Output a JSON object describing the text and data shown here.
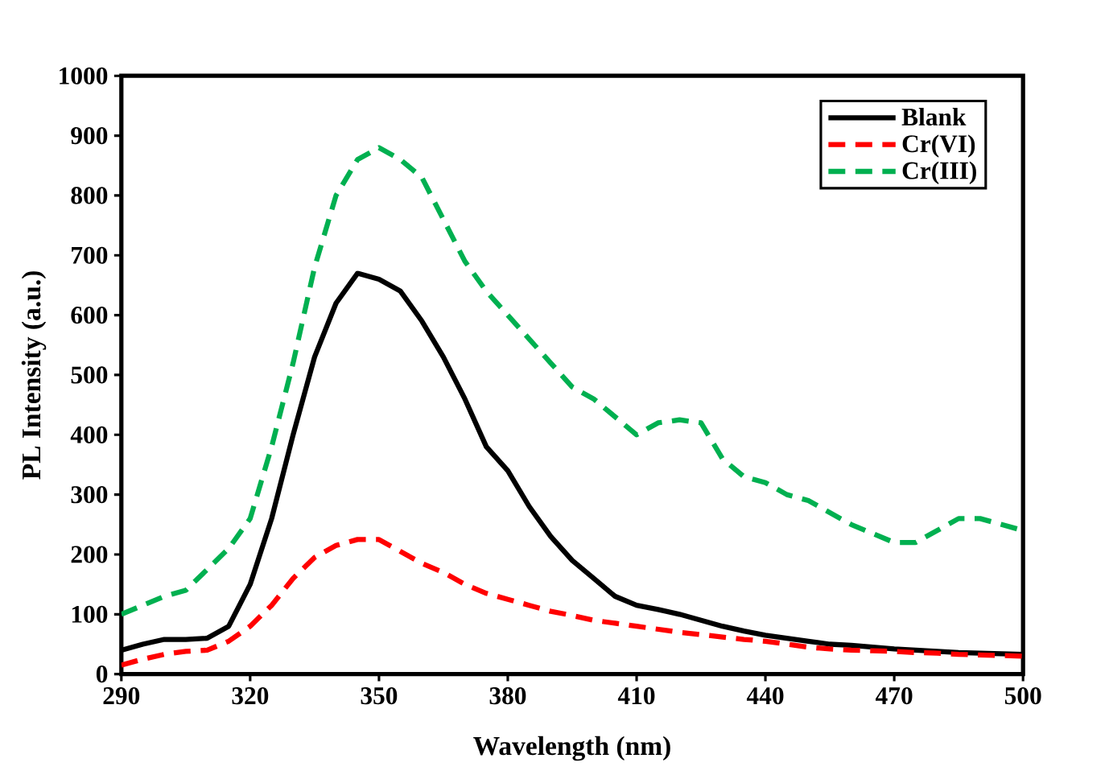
{
  "chart_data": {
    "type": "line",
    "xlabel": "Wavelength (nm)",
    "ylabel": "PL Intensity (a.u.)",
    "xlim": [
      290,
      500
    ],
    "ylim": [
      0,
      1000
    ],
    "xticks": [
      290,
      320,
      350,
      380,
      410,
      440,
      470,
      500
    ],
    "yticks": [
      0,
      100,
      200,
      300,
      400,
      500,
      600,
      700,
      800,
      900,
      1000
    ],
    "legend": "top right",
    "grid": false,
    "marker": "none",
    "x": [
      290,
      295,
      300,
      305,
      310,
      315,
      320,
      325,
      330,
      335,
      340,
      345,
      350,
      355,
      360,
      365,
      370,
      375,
      380,
      385,
      390,
      395,
      400,
      405,
      410,
      415,
      420,
      425,
      430,
      435,
      440,
      445,
      450,
      455,
      460,
      465,
      470,
      475,
      480,
      485,
      490,
      495,
      500
    ],
    "series": [
      {
        "name": "Blank",
        "color": "#000000",
        "line_style": "solid",
        "values": [
          40,
          50,
          58,
          58,
          60,
          80,
          150,
          260,
          400,
          530,
          620,
          670,
          660,
          640,
          590,
          530,
          460,
          380,
          340,
          280,
          230,
          190,
          160,
          130,
          115,
          108,
          100,
          90,
          80,
          72,
          65,
          60,
          55,
          50,
          48,
          45,
          42,
          40,
          38,
          36,
          35,
          34,
          33
        ]
      },
      {
        "name": "Cr(VI)",
        "color": "#ff0000",
        "line_style": "dashed",
        "values": [
          15,
          25,
          33,
          38,
          40,
          55,
          80,
          115,
          160,
          195,
          215,
          225,
          225,
          205,
          185,
          170,
          150,
          135,
          125,
          115,
          105,
          98,
          90,
          85,
          80,
          75,
          70,
          66,
          62,
          58,
          55,
          50,
          45,
          42,
          40,
          39,
          38,
          36,
          35,
          33,
          32,
          31,
          30
        ]
      },
      {
        "name": "Cr(III)",
        "color": "#00b050",
        "line_style": "dashed",
        "values": [
          100,
          115,
          130,
          140,
          175,
          210,
          260,
          380,
          520,
          680,
          800,
          860,
          880,
          860,
          830,
          760,
          690,
          640,
          600,
          560,
          520,
          480,
          460,
          430,
          400,
          420,
          425,
          420,
          360,
          330,
          320,
          300,
          290,
          270,
          250,
          235,
          220,
          220,
          240,
          260,
          260,
          250,
          240
        ]
      }
    ]
  }
}
